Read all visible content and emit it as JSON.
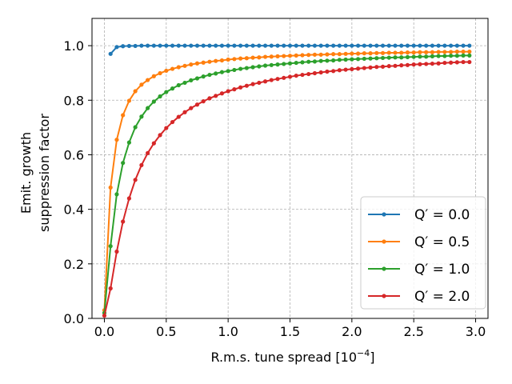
{
  "chart_data": {
    "type": "line",
    "xlabel_main": "R.m.s. tune spread [10",
    "xlabel_exp": "−4",
    "xlabel_close": "]",
    "ylabel_line1": "Emit. growth",
    "ylabel_line2": "suppression factor",
    "xlim": [
      -0.1,
      3.1
    ],
    "ylim": [
      0.0,
      1.1
    ],
    "grid": true,
    "legend_position": "lower-right",
    "xticks": [
      0.0,
      0.5,
      1.0,
      1.5,
      2.0,
      2.5,
      3.0
    ],
    "xtick_labels": [
      "0.0",
      "0.5",
      "1.0",
      "1.5",
      "2.0",
      "2.5",
      "3.0"
    ],
    "yticks": [
      0.0,
      0.2,
      0.4,
      0.6,
      0.8,
      1.0
    ],
    "ytick_labels": [
      "0.0",
      "0.2",
      "0.4",
      "0.6",
      "0.8",
      "1.0"
    ],
    "x": [
      0.0,
      0.05,
      0.1,
      0.15,
      0.2,
      0.25,
      0.3,
      0.35,
      0.4,
      0.45,
      0.5,
      0.55,
      0.6,
      0.65,
      0.7,
      0.75,
      0.8,
      0.85,
      0.9,
      0.95,
      1.0,
      1.05,
      1.1,
      1.15,
      1.2,
      1.25,
      1.3,
      1.35,
      1.4,
      1.45,
      1.5,
      1.55,
      1.6,
      1.65,
      1.7,
      1.75,
      1.8,
      1.85,
      1.9,
      1.95,
      2.0,
      2.05,
      2.1,
      2.15,
      2.2,
      2.25,
      2.3,
      2.35,
      2.4,
      2.45,
      2.5,
      2.55,
      2.6,
      2.65,
      2.7,
      2.75,
      2.8,
      2.85,
      2.9,
      2.95
    ],
    "series": [
      {
        "name": "Q' = 0.0",
        "legend_prefix": "Q",
        "legend_prime": "′",
        "legend_rest": " = 0.0",
        "color": "#1f77b4",
        "skip_first": true,
        "values": [
          0.0,
          0.97,
          0.995,
          0.998,
          0.999,
          0.999,
          1.0,
          1.0,
          1.0,
          1.0,
          1.0,
          1.0,
          1.0,
          1.0,
          1.0,
          1.0,
          1.0,
          1.0,
          1.0,
          1.0,
          1.0,
          1.0,
          1.0,
          1.0,
          1.0,
          1.0,
          1.0,
          1.0,
          1.0,
          1.0,
          1.0,
          1.0,
          1.0,
          1.0,
          1.0,
          1.0,
          1.0,
          1.0,
          1.0,
          1.0,
          1.0,
          1.0,
          1.0,
          1.0,
          1.0,
          1.0,
          1.0,
          1.0,
          1.0,
          1.0,
          1.0,
          1.0,
          1.0,
          1.0,
          1.0,
          1.0,
          1.0,
          1.0,
          1.0,
          1.0
        ]
      },
      {
        "name": "Q' = 0.5",
        "legend_prefix": "Q",
        "legend_prime": "′",
        "legend_rest": " = 0.5",
        "color": "#ff7f0e",
        "skip_first": false,
        "values": [
          0.03,
          0.48,
          0.655,
          0.745,
          0.798,
          0.833,
          0.857,
          0.874,
          0.888,
          0.899,
          0.908,
          0.915,
          0.921,
          0.926,
          0.931,
          0.935,
          0.938,
          0.941,
          0.944,
          0.946,
          0.949,
          0.951,
          0.953,
          0.954,
          0.956,
          0.957,
          0.959,
          0.96,
          0.961,
          0.962,
          0.963,
          0.964,
          0.965,
          0.966,
          0.967,
          0.967,
          0.968,
          0.969,
          0.969,
          0.97,
          0.971,
          0.971,
          0.972,
          0.972,
          0.973,
          0.973,
          0.974,
          0.974,
          0.974,
          0.975,
          0.975,
          0.976,
          0.976,
          0.976,
          0.977,
          0.977,
          0.977,
          0.978,
          0.978,
          0.978
        ]
      },
      {
        "name": "Q' = 1.0",
        "legend_prefix": "Q",
        "legend_prime": "′",
        "legend_rest": " = 1.0",
        "color": "#2ca02c",
        "skip_first": false,
        "values": [
          0.02,
          0.265,
          0.455,
          0.57,
          0.645,
          0.701,
          0.74,
          0.771,
          0.795,
          0.814,
          0.83,
          0.843,
          0.855,
          0.864,
          0.873,
          0.88,
          0.887,
          0.893,
          0.898,
          0.903,
          0.907,
          0.911,
          0.915,
          0.918,
          0.921,
          0.924,
          0.927,
          0.929,
          0.931,
          0.933,
          0.935,
          0.937,
          0.939,
          0.941,
          0.942,
          0.944,
          0.945,
          0.946,
          0.948,
          0.949,
          0.95,
          0.951,
          0.952,
          0.953,
          0.954,
          0.955,
          0.956,
          0.957,
          0.957,
          0.958,
          0.959,
          0.96,
          0.96,
          0.961,
          0.962,
          0.962,
          0.963,
          0.963,
          0.964,
          0.964
        ]
      },
      {
        "name": "Q' = 2.0",
        "legend_prefix": "Q",
        "legend_prime": "′",
        "legend_rest": " = 2.0",
        "color": "#d62728",
        "skip_first": false,
        "values": [
          0.01,
          0.11,
          0.245,
          0.355,
          0.44,
          0.508,
          0.562,
          0.606,
          0.642,
          0.672,
          0.698,
          0.72,
          0.739,
          0.756,
          0.771,
          0.784,
          0.796,
          0.807,
          0.816,
          0.825,
          0.833,
          0.84,
          0.847,
          0.853,
          0.859,
          0.864,
          0.869,
          0.874,
          0.878,
          0.882,
          0.886,
          0.89,
          0.893,
          0.896,
          0.899,
          0.902,
          0.905,
          0.907,
          0.91,
          0.912,
          0.914,
          0.916,
          0.918,
          0.92,
          0.922,
          0.923,
          0.925,
          0.926,
          0.928,
          0.929,
          0.931,
          0.932,
          0.933,
          0.934,
          0.935,
          0.937,
          0.938,
          0.939,
          0.94,
          0.94
        ]
      }
    ]
  }
}
